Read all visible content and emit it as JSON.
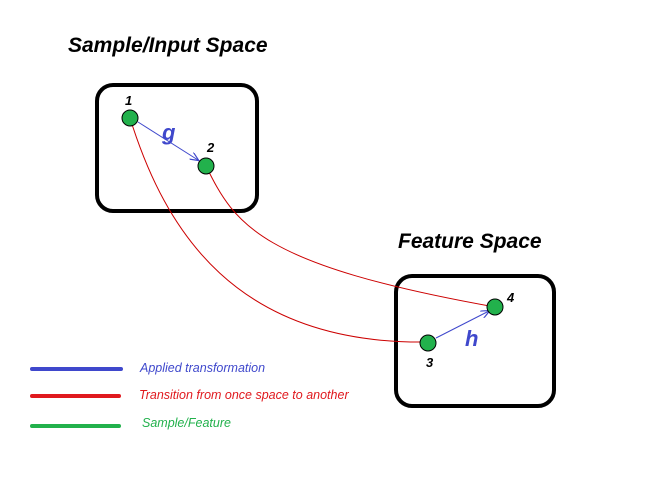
{
  "colors": {
    "blue": "#3f48cc",
    "red": "#e0191e",
    "green": "#22b14c",
    "curve_red": "#cc0000",
    "box": "#000000"
  },
  "spaces": {
    "input": {
      "title": "Sample/Input Space"
    },
    "feature": {
      "title": "Feature Space"
    }
  },
  "nodes": [
    {
      "id": "1",
      "label": "1"
    },
    {
      "id": "2",
      "label": "2"
    },
    {
      "id": "3",
      "label": "3"
    },
    {
      "id": "4",
      "label": "4"
    }
  ],
  "transforms": {
    "g": {
      "label": "g",
      "from": "1",
      "to": "2"
    },
    "h": {
      "label": "h",
      "from": "3",
      "to": "4"
    }
  },
  "legend": [
    {
      "label": "Applied transformation",
      "color_key": "blue"
    },
    {
      "label": "Transition from once space to another",
      "color_key": "red"
    },
    {
      "label": "Sample/Feature",
      "color_key": "green"
    }
  ]
}
